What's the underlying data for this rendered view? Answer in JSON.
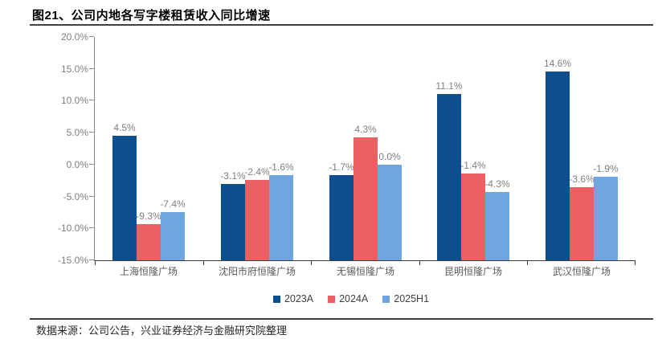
{
  "title": "图21、公司内地各写字楼租赁收入同比增速",
  "source_note": "数据来源：公司公告，兴业证券经济与金融研究院整理",
  "chart_data": {
    "type": "bar",
    "title": "图21、公司内地各写字楼租赁收入同比增速",
    "categories": [
      "上海恒隆广场",
      "沈阳市府恒隆广场",
      "无锡恒隆广场",
      "昆明恒隆广场",
      "武汉恒隆广场"
    ],
    "series": [
      {
        "name": "2023A",
        "color": "#0d4e8e",
        "values": [
          4.5,
          -3.1,
          -1.7,
          11.1,
          14.6
        ],
        "labels": [
          "4.5%",
          "-3.1%",
          "-1.7%",
          "11.1%",
          "14.6%"
        ]
      },
      {
        "name": "2024A",
        "color": "#eb6161",
        "values": [
          -9.3,
          -2.4,
          4.3,
          -1.4,
          -3.6
        ],
        "labels": [
          "-9.3%",
          "-2.4%",
          "4.3%",
          "-1.4%",
          "-3.6%"
        ]
      },
      {
        "name": "2025H1",
        "color": "#6fa6e0",
        "values": [
          -7.4,
          -1.6,
          0.0,
          -4.3,
          -1.9
        ],
        "labels": [
          "-7.4%",
          "-1.6%",
          "0.0%",
          "-4.3%",
          "-1.9%"
        ]
      }
    ],
    "ylim": [
      -15,
      20
    ],
    "ytick_step": 5,
    "ytick_labels": [
      "20.0%",
      "15.0%",
      "10.0%",
      "5.0%",
      "0.0%",
      "-5.0%",
      "-10.0%",
      "-15.0%"
    ],
    "xlabel": "",
    "ylabel": "",
    "grid": false,
    "bar_anchor": "axis_min",
    "legend_position": "bottom"
  },
  "colors": {
    "series_2023A": "#0d4e8e",
    "series_2024A": "#eb6161",
    "series_2025H1": "#6fa6e0",
    "axis": "#8a8a8a",
    "tick_text": "#7f7f7f",
    "rule": "#404040"
  }
}
